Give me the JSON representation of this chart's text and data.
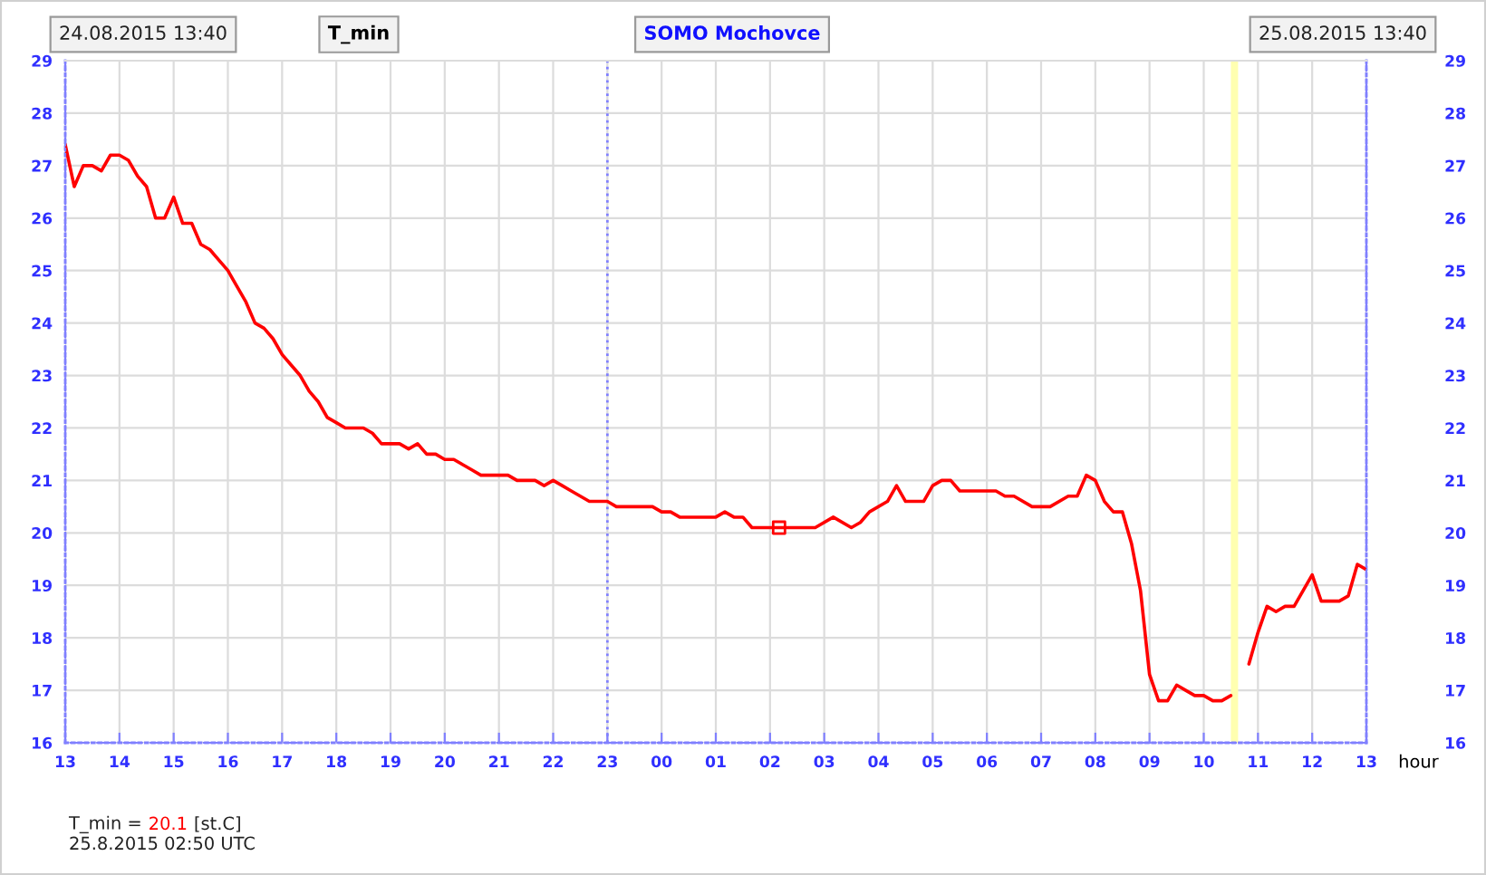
{
  "chart_data": {
    "type": "line",
    "title": "T_min",
    "subtitle": "SOMO Mochovce",
    "xlabel": "hour",
    "annotations": [
      "24.08.2015 13:40",
      "25.08.2015 13:40",
      "T_min =",
      "20.1",
      "[st.C]",
      "25.8.2015 02:50 UTC"
    ],
    "xlim": [
      "2015-08-24T13:00",
      "2015-08-25T13:00"
    ],
    "xticks": [
      {
        "value": "2015-08-24T13:00",
        "label": "13"
      },
      {
        "value": "2015-08-24T14:00",
        "label": "14"
      },
      {
        "value": "2015-08-24T15:00",
        "label": "15"
      },
      {
        "value": "2015-08-24T16:00",
        "label": "16"
      },
      {
        "value": "2015-08-24T17:00",
        "label": "17"
      },
      {
        "value": "2015-08-24T18:00",
        "label": "18"
      },
      {
        "value": "2015-08-24T19:00",
        "label": "19"
      },
      {
        "value": "2015-08-24T20:00",
        "label": "20"
      },
      {
        "value": "2015-08-24T21:00",
        "label": "21"
      },
      {
        "value": "2015-08-24T22:00",
        "label": "22"
      },
      {
        "value": "2015-08-24T23:00",
        "label": "23"
      },
      {
        "value": "2015-08-25T00:00",
        "label": "00"
      },
      {
        "value": "2015-08-25T01:00",
        "label": "01"
      },
      {
        "value": "2015-08-25T02:00",
        "label": "02"
      },
      {
        "value": "2015-08-25T03:00",
        "label": "03"
      },
      {
        "value": "2015-08-25T04:00",
        "label": "04"
      },
      {
        "value": "2015-08-25T05:00",
        "label": "05"
      },
      {
        "value": "2015-08-25T06:00",
        "label": "06"
      },
      {
        "value": "2015-08-25T07:00",
        "label": "07"
      },
      {
        "value": "2015-08-25T08:00",
        "label": "08"
      },
      {
        "value": "2015-08-25T09:00",
        "label": "09"
      },
      {
        "value": "2015-08-25T10:00",
        "label": "10"
      },
      {
        "value": "2015-08-25T11:00",
        "label": "11"
      },
      {
        "value": "2015-08-25T12:00",
        "label": "12"
      },
      {
        "value": "2015-08-25T13:00",
        "label": "13"
      }
    ],
    "ylim": [
      16,
      29
    ],
    "yticks": [
      16,
      17,
      18,
      19,
      20,
      21,
      22,
      23,
      24,
      25,
      26,
      27,
      28,
      29
    ],
    "y2lim": [
      16,
      29
    ],
    "y2ticks": [
      16,
      17,
      18,
      19,
      20,
      21,
      22,
      23,
      24,
      25,
      26,
      27,
      28,
      29
    ],
    "grid": true,
    "ref_lines": [
      {
        "axis": "x",
        "value": "2015-08-24T23:00",
        "color": "#8080ff",
        "line_style": "dotted"
      }
    ],
    "bands": [
      {
        "axis": "x",
        "from": "2015-08-25T10:30",
        "to": "2015-08-25T10:38",
        "color": "#ffffb0"
      }
    ],
    "series": [
      {
        "color": "#ff0000",
        "x": [
          "2015-08-24T13:00",
          "2015-08-24T13:10",
          "2015-08-24T13:20",
          "2015-08-24T13:30",
          "2015-08-24T13:40",
          "2015-08-24T13:50",
          "2015-08-24T14:00",
          "2015-08-24T14:10",
          "2015-08-24T14:20",
          "2015-08-24T14:30",
          "2015-08-24T14:40",
          "2015-08-24T14:50",
          "2015-08-24T15:00",
          "2015-08-24T15:10",
          "2015-08-24T15:20",
          "2015-08-24T15:30",
          "2015-08-24T15:40",
          "2015-08-24T15:50",
          "2015-08-24T16:00",
          "2015-08-24T16:10",
          "2015-08-24T16:20",
          "2015-08-24T16:30",
          "2015-08-24T16:40",
          "2015-08-24T16:50",
          "2015-08-24T17:00",
          "2015-08-24T17:10",
          "2015-08-24T17:20",
          "2015-08-24T17:30",
          "2015-08-24T17:40",
          "2015-08-24T17:50",
          "2015-08-24T18:00",
          "2015-08-24T18:10",
          "2015-08-24T18:30",
          "2015-08-24T18:40",
          "2015-08-24T18:50",
          "2015-08-24T19:10",
          "2015-08-24T19:20",
          "2015-08-24T19:30",
          "2015-08-24T19:40",
          "2015-08-24T19:50",
          "2015-08-24T20:00",
          "2015-08-24T20:10",
          "2015-08-24T20:20",
          "2015-08-24T20:30",
          "2015-08-24T20:40",
          "2015-08-24T21:10",
          "2015-08-24T21:20",
          "2015-08-24T21:40",
          "2015-08-24T21:50",
          "2015-08-24T22:00",
          "2015-08-24T22:10",
          "2015-08-24T22:20",
          "2015-08-24T22:30",
          "2015-08-24T22:40",
          "2015-08-24T23:00",
          "2015-08-24T23:10",
          "2015-08-24T23:50",
          "2015-08-25T00:00",
          "2015-08-25T00:10",
          "2015-08-25T00:20",
          "2015-08-25T01:00",
          "2015-08-25T01:10",
          "2015-08-25T01:20",
          "2015-08-25T01:30",
          "2015-08-25T01:40",
          "2015-08-25T02:50",
          "2015-08-25T03:10",
          "2015-08-25T03:30",
          "2015-08-25T03:40",
          "2015-08-25T03:50",
          "2015-08-25T04:10",
          "2015-08-25T04:20",
          "2015-08-25T04:30",
          "2015-08-25T04:50",
          "2015-08-25T05:00",
          "2015-08-25T05:10",
          "2015-08-25T05:20",
          "2015-08-25T05:30",
          "2015-08-25T06:10",
          "2015-08-25T06:20",
          "2015-08-25T06:30",
          "2015-08-25T06:50",
          "2015-08-25T07:10",
          "2015-08-25T07:30",
          "2015-08-25T07:40",
          "2015-08-25T07:50",
          "2015-08-25T08:00",
          "2015-08-25T08:10",
          "2015-08-25T08:20",
          "2015-08-25T08:30",
          "2015-08-25T08:40",
          "2015-08-25T08:50",
          "2015-08-25T09:00",
          "2015-08-25T09:10",
          "2015-08-25T09:20",
          "2015-08-25T09:30",
          "2015-08-25T09:40",
          "2015-08-25T09:50",
          "2015-08-25T10:00",
          "2015-08-25T10:10",
          "2015-08-25T10:20",
          "2015-08-25T10:30",
          "2015-08-25T10:40",
          "2015-08-25T10:50",
          "2015-08-25T11:00",
          "2015-08-25T11:10",
          "2015-08-25T11:20",
          "2015-08-25T11:30",
          "2015-08-25T11:40",
          "2015-08-25T12:00",
          "2015-08-25T12:10",
          "2015-08-25T12:30",
          "2015-08-25T12:40",
          "2015-08-25T12:50",
          "2015-08-25T13:00"
        ],
        "values": [
          27.4,
          26.6,
          27.0,
          27.0,
          26.9,
          27.2,
          27.2,
          27.1,
          26.8,
          26.6,
          26.0,
          26.0,
          26.4,
          25.9,
          25.9,
          25.5,
          25.4,
          25.2,
          25.0,
          24.7,
          24.4,
          24.0,
          23.9,
          23.7,
          23.4,
          23.2,
          23.0,
          22.7,
          22.5,
          22.2,
          22.1,
          22.0,
          22.0,
          21.9,
          21.7,
          21.7,
          21.6,
          21.7,
          21.5,
          21.5,
          21.4,
          21.4,
          21.3,
          21.2,
          21.1,
          21.1,
          21.0,
          21.0,
          20.9,
          21.0,
          20.9,
          20.8,
          20.7,
          20.6,
          20.6,
          20.5,
          20.5,
          20.4,
          20.4,
          20.3,
          20.3,
          20.4,
          20.3,
          20.3,
          20.1,
          20.1,
          20.3,
          20.1,
          20.2,
          20.4,
          20.6,
          20.9,
          20.6,
          20.6,
          20.9,
          21.0,
          21.0,
          20.8,
          20.8,
          20.7,
          20.7,
          20.5,
          20.5,
          20.7,
          20.7,
          21.1,
          21.0,
          20.6,
          20.4,
          20.4,
          19.8,
          18.9,
          17.3,
          16.8,
          16.8,
          17.1,
          17.0,
          16.9,
          16.9,
          16.8,
          16.8,
          16.9,
          null,
          17.5,
          18.1,
          18.6,
          18.5,
          18.6,
          18.6,
          19.2,
          18.7,
          18.7,
          18.8,
          19.4,
          19.3
        ]
      },
      {
        "type": "scatter",
        "color": "#ff0000",
        "marker": "square",
        "x": [
          "2015-08-25T02:10"
        ],
        "values": [
          20.1
        ]
      }
    ]
  }
}
